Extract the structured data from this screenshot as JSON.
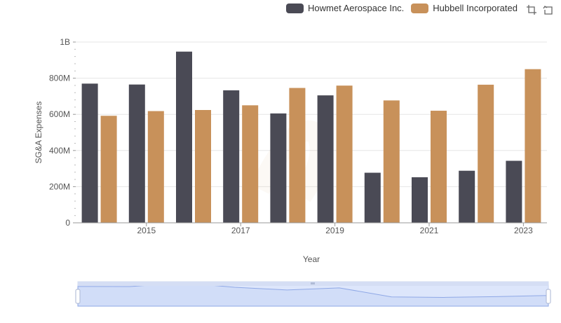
{
  "legend": {
    "series": [
      {
        "name": "Howmet Aerospace Inc.",
        "color": "#4a4a55"
      },
      {
        "name": "Hubbell Incorporated",
        "color": "#c8915a"
      }
    ]
  },
  "toolbar": {
    "icons": [
      "crop-icon",
      "reset-icon"
    ]
  },
  "chart_data": {
    "type": "bar",
    "xlabel": "Year",
    "ylabel": "SG&A Expenses",
    "x_tick_labels": [
      "2015",
      "2017",
      "2019",
      "2021",
      "2023"
    ],
    "y_tick_labels": [
      "0",
      "200M",
      "400M",
      "600M",
      "800M",
      "1B"
    ],
    "ylim": [
      0,
      1000000000
    ],
    "grid": true,
    "legend_position": "top-right",
    "categories": [
      "2014",
      "2015",
      "2016",
      "2017",
      "2018",
      "2019",
      "2020",
      "2021",
      "2022",
      "2023"
    ],
    "series": [
      {
        "name": "Howmet Aerospace Inc.",
        "color": "#4a4a55",
        "values": [
          770000000,
          765000000,
          947000000,
          733000000,
          605000000,
          705000000,
          277000000,
          252000000,
          288000000,
          343000000
        ]
      },
      {
        "name": "Hubbell Incorporated",
        "color": "#c8915a",
        "values": [
          592000000,
          618000000,
          624000000,
          650000000,
          746000000,
          759000000,
          677000000,
          620000000,
          764000000,
          850000000
        ]
      }
    ]
  }
}
